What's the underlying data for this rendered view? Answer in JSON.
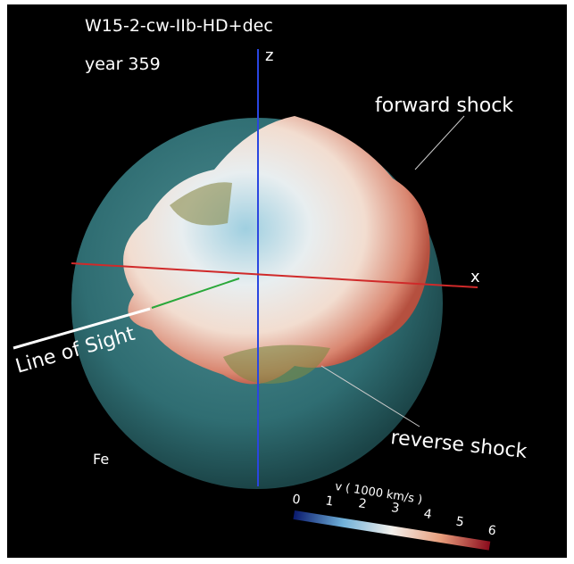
{
  "header": {
    "title": "W15-2-cw-IIb-HD+dec",
    "subtitle": "year 359"
  },
  "axes": {
    "z": "z",
    "x": "x"
  },
  "annotations": {
    "forward_shock": "forward shock",
    "line_of_sight": "Line of Sight",
    "reverse_shock": "reverse shock",
    "element": "Fe"
  },
  "colorbar": {
    "title": "v ( 1000 km/s )",
    "ticks": [
      0,
      1,
      2,
      3,
      4,
      5,
      6
    ]
  }
}
